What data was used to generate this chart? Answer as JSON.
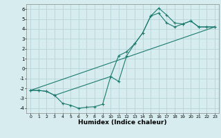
{
  "xlabel": "Humidex (Indice chaleur)",
  "ylabel": "",
  "bg_color": "#d6ecee",
  "grid_color": "#b8d4d8",
  "line_color": "#1a7a6e",
  "xlim": [
    -0.5,
    23.5
  ],
  "ylim": [
    -4.5,
    6.5
  ],
  "xticks": [
    0,
    1,
    2,
    3,
    4,
    5,
    6,
    7,
    8,
    9,
    10,
    11,
    12,
    13,
    14,
    15,
    16,
    17,
    18,
    19,
    20,
    21,
    22,
    23
  ],
  "yticks": [
    -4,
    -3,
    -2,
    -1,
    0,
    1,
    2,
    3,
    4,
    5,
    6
  ],
  "line1_x": [
    0,
    1,
    2,
    3,
    4,
    5,
    6,
    7,
    8,
    9,
    10,
    11,
    12,
    13,
    14,
    15,
    16,
    17,
    18,
    19,
    20,
    21,
    22,
    23
  ],
  "line1_y": [
    -2.2,
    -2.2,
    -2.3,
    -2.7,
    -3.5,
    -3.7,
    -4.0,
    -3.9,
    -3.85,
    -3.6,
    -0.8,
    -1.3,
    1.3,
    2.5,
    3.6,
    5.3,
    6.1,
    5.4,
    4.6,
    4.5,
    4.8,
    4.2,
    4.2,
    4.2
  ],
  "line2_x": [
    0,
    1,
    2,
    3,
    10,
    11,
    12,
    13,
    14,
    15,
    16,
    17,
    18,
    19,
    20,
    21,
    22,
    23
  ],
  "line2_y": [
    -2.2,
    -2.2,
    -2.3,
    -2.7,
    -0.8,
    1.3,
    1.7,
    2.5,
    3.6,
    5.3,
    5.6,
    4.6,
    4.2,
    4.5,
    4.8,
    4.2,
    4.2,
    4.2
  ],
  "line3_x": [
    0,
    23
  ],
  "line3_y": [
    -2.2,
    4.2
  ]
}
